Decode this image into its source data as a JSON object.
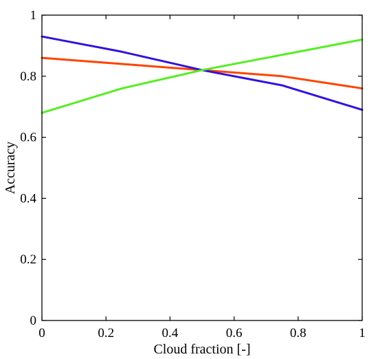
{
  "chart_data": {
    "type": "line",
    "title": "",
    "xlabel": "Cloud fraction [-]",
    "ylabel": "Accuracy",
    "xlim": [
      0,
      1
    ],
    "ylim": [
      0,
      1
    ],
    "xticks": [
      0,
      0.2,
      0.4,
      0.6,
      0.8,
      1
    ],
    "xtick_labels": [
      "0",
      "0.2",
      "0.4",
      "0.6",
      "0.8",
      "1"
    ],
    "yticks": [
      0,
      0.2,
      0.4,
      0.6,
      0.8,
      1
    ],
    "ytick_labels": [
      "0",
      "0.2",
      "0.4",
      "0.6",
      "0.8",
      "1"
    ],
    "grid": false,
    "legend": "none",
    "series": [
      {
        "color": "#ff4400",
        "x": [
          0,
          0.25,
          0.5,
          0.75,
          1
        ],
        "y": [
          0.86,
          0.84,
          0.82,
          0.8,
          0.76
        ]
      },
      {
        "color": "#3311dd",
        "x": [
          0,
          0.25,
          0.5,
          0.75,
          1
        ],
        "y": [
          0.93,
          0.88,
          0.82,
          0.77,
          0.69
        ]
      },
      {
        "color": "#55ee22",
        "x": [
          0,
          0.25,
          0.5,
          0.75,
          1
        ],
        "y": [
          0.68,
          0.76,
          0.82,
          0.87,
          0.92
        ]
      }
    ]
  }
}
